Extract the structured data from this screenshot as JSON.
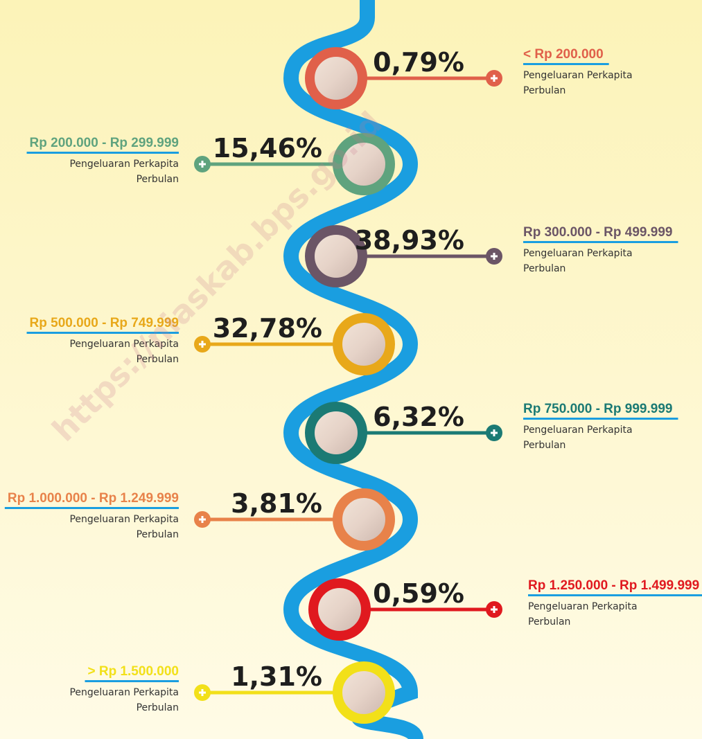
{
  "watermark": "https://niaskab.bps.go.id",
  "items": [
    {
      "range": "< Rp 200.000",
      "percent": "0,79%",
      "desc_line1": "Pengeluaran Perkapita",
      "desc_line2": "Perbulan",
      "color": "#e0604a"
    },
    {
      "range": "Rp 200.000 - Rp 299.999",
      "percent": "15,46%",
      "desc_line1": "Pengeluaran Perkapita",
      "desc_line2": "Perbulan",
      "color": "#5fa37e"
    },
    {
      "range": "Rp 300.000 - Rp 499.999",
      "percent": "38,93%",
      "desc_line1": "Pengeluaran Perkapita",
      "desc_line2": "Perbulan",
      "color": "#6b5566"
    },
    {
      "range": "Rp 500.000 - Rp 749.999",
      "percent": "32,78%",
      "desc_line1": "Pengeluaran Perkapita",
      "desc_line2": "Perbulan",
      "color": "#e8a81a"
    },
    {
      "range": "Rp 750.000 - Rp 999.999",
      "percent": "6,32%",
      "desc_line1": "Pengeluaran Perkapita",
      "desc_line2": "Perbulan",
      "color": "#1b7a74"
    },
    {
      "range": "Rp 1.000.000 - Rp 1.249.999",
      "percent": "3,81%",
      "desc_line1": "Pengeluaran Perkapita",
      "desc_line2": "Perbulan",
      "color": "#e8824a"
    },
    {
      "range": "Rp 1.250.000 - Rp 1.499.999",
      "percent": "0,59%",
      "desc_line1": "Pengeluaran Perkapita",
      "desc_line2": "Perbulan",
      "color": "#e0191f"
    },
    {
      "range": "> Rp 1.500.000",
      "percent": "1,31%",
      "desc_line1": "Pengeluaran Perkapita",
      "desc_line2": "Perbulan",
      "color": "#f2e019"
    }
  ]
}
